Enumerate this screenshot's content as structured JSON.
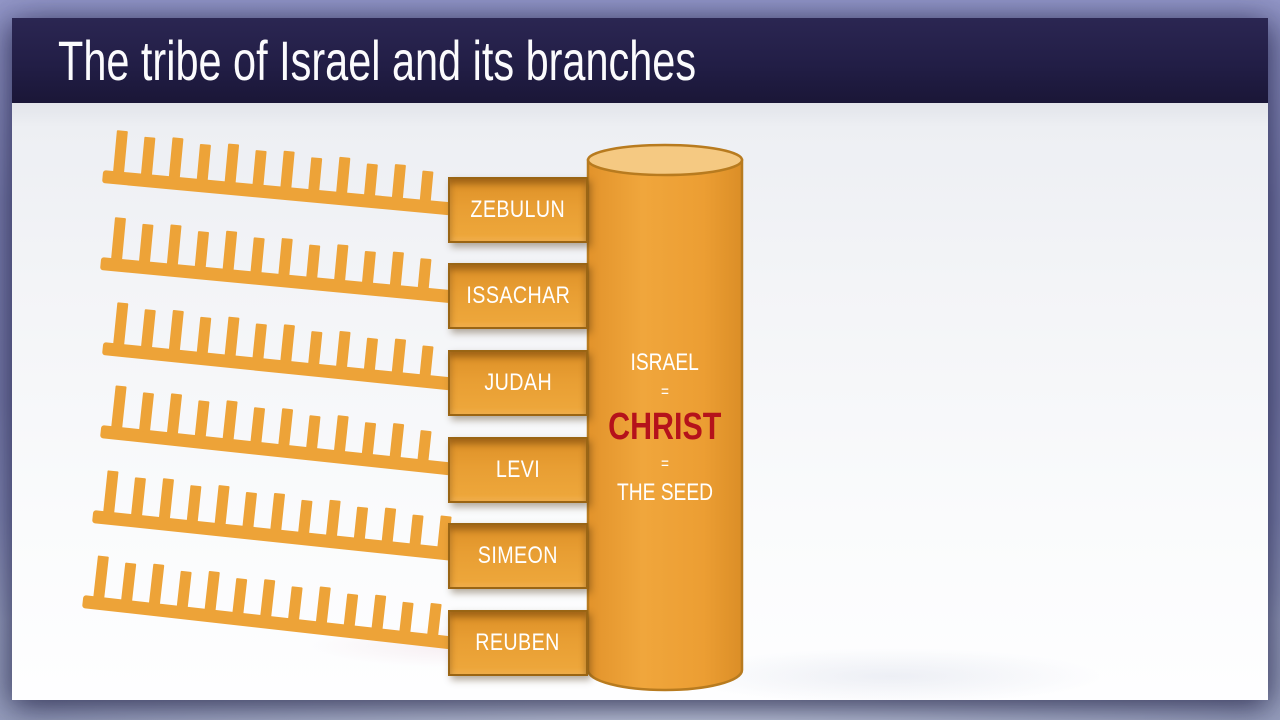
{
  "slide": {
    "title": "The tribe of Israel and its branches"
  },
  "diagram": {
    "tribes": [
      {
        "label": "ZEBULUN"
      },
      {
        "label": "ISSACHAR"
      },
      {
        "label": "JUDAH"
      },
      {
        "label": "LEVI"
      },
      {
        "label": "SIMEON"
      },
      {
        "label": "REUBEN"
      }
    ],
    "trunk": {
      "line1": "ISRAEL",
      "eq1": "=",
      "line2": "CHRIST",
      "eq2": "=",
      "line3": "THE SEED"
    }
  },
  "colors": {
    "accent_orange": "#EDA338",
    "box_orange": "#E89E33",
    "outline_dark": "#B87B1F",
    "cylinder_top": "#F5C982",
    "christ_red": "#B5121B",
    "header_navy": "#221E46",
    "title_white": "#FBFBFD"
  }
}
